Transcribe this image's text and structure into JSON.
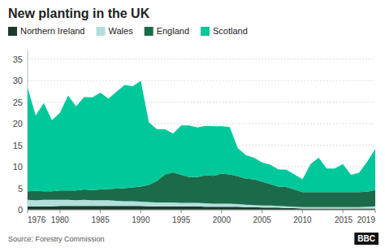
{
  "chart_data": {
    "type": "area",
    "title": "New planting in the UK",
    "x": [
      1976,
      1977,
      1978,
      1979,
      1980,
      1981,
      1982,
      1983,
      1984,
      1985,
      1986,
      1987,
      1988,
      1989,
      1990,
      1991,
      1992,
      1993,
      1994,
      1995,
      1996,
      1997,
      1998,
      1999,
      2000,
      2001,
      2002,
      2003,
      2004,
      2005,
      2006,
      2007,
      2008,
      2009,
      2010,
      2011,
      2012,
      2013,
      2014,
      2015,
      2016,
      2017,
      2018,
      2019
    ],
    "series": [
      {
        "name": "Northern Ireland",
        "color": "#1a3a2a",
        "values": [
          0.8,
          0.8,
          0.8,
          0.8,
          0.9,
          0.9,
          0.9,
          0.9,
          0.9,
          0.9,
          0.9,
          0.9,
          0.9,
          0.9,
          0.9,
          0.8,
          0.8,
          0.8,
          0.8,
          0.8,
          0.8,
          0.8,
          0.7,
          0.7,
          0.7,
          0.7,
          0.7,
          0.6,
          0.6,
          0.5,
          0.5,
          0.5,
          0.4,
          0.4,
          0.3,
          0.3,
          0.3,
          0.3,
          0.3,
          0.3,
          0.3,
          0.3,
          0.3,
          0.3
        ]
      },
      {
        "name": "Wales",
        "color": "#b2dfdb",
        "values": [
          1.5,
          1.4,
          1.5,
          1.5,
          1.4,
          1.4,
          1.3,
          1.4,
          1.3,
          1.3,
          1.3,
          1.2,
          1.1,
          1.1,
          1.0,
          1.0,
          0.9,
          0.9,
          0.9,
          0.8,
          0.8,
          0.8,
          0.8,
          0.7,
          0.7,
          0.7,
          0.6,
          0.6,
          0.5,
          0.5,
          0.5,
          0.4,
          0.4,
          0.3,
          0.3,
          0.3,
          0.3,
          0.3,
          0.3,
          0.3,
          0.3,
          0.3,
          0.4,
          0.5
        ]
      },
      {
        "name": "England",
        "color": "#1b6b4a",
        "values": [
          2.0,
          2.2,
          2.0,
          2.0,
          2.2,
          2.2,
          2.3,
          2.4,
          2.4,
          2.5,
          2.6,
          2.8,
          3.0,
          3.2,
          3.5,
          4.0,
          5.0,
          6.5,
          7.0,
          6.5,
          6.0,
          6.0,
          6.5,
          6.5,
          7.0,
          6.8,
          6.5,
          6.0,
          6.0,
          5.5,
          5.0,
          4.5,
          4.5,
          4.0,
          3.5,
          3.5,
          3.5,
          3.5,
          3.5,
          3.5,
          3.5,
          3.5,
          3.5,
          3.8
        ]
      },
      {
        "name": "Scotland",
        "color": "#00c89a",
        "values": [
          24.0,
          17.5,
          20.5,
          16.5,
          18.0,
          22.0,
          19.5,
          21.5,
          21.5,
          22.5,
          21.0,
          22.5,
          24.0,
          23.5,
          24.5,
          14.5,
          12.0,
          10.5,
          9.0,
          11.5,
          12.0,
          11.5,
          11.5,
          11.5,
          11.0,
          11.0,
          6.5,
          5.5,
          5.0,
          4.5,
          4.5,
          4.0,
          4.0,
          3.5,
          3.0,
          6.5,
          8.0,
          5.5,
          5.5,
          6.5,
          4.0,
          4.5,
          7.0,
          9.5
        ]
      }
    ],
    "stacked": true,
    "xlim": [
      1976,
      2019
    ],
    "xticks": [
      1976,
      1980,
      1985,
      1990,
      1995,
      2000,
      2005,
      2010,
      2015,
      2019
    ],
    "ylim": [
      0,
      37
    ],
    "yticks": [
      0,
      5,
      10,
      15,
      20,
      25,
      30,
      35
    ],
    "grid": true,
    "legend": "top",
    "annotations": [
      "Source: Forestry Commission",
      "BBC"
    ]
  }
}
